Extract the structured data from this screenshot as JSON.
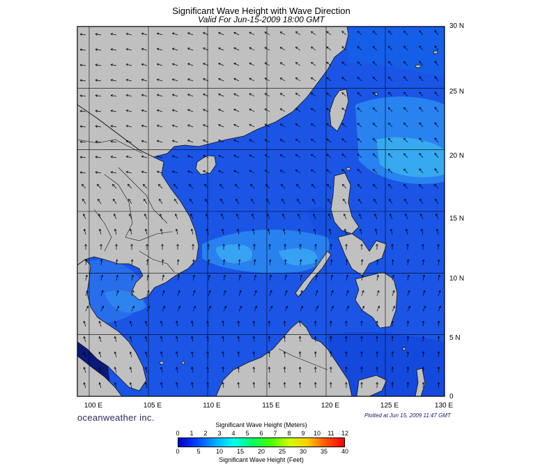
{
  "title": "Significant Wave Height with Wave Direction",
  "subtitle": "Valid For Jun-15-2009 18:00 GMT",
  "map": {
    "lon_range": [
      99,
      130
    ],
    "lat_range": [
      0,
      30
    ],
    "lat_labels": [
      "30 N",
      "25 N",
      "20 N",
      "15 N",
      "10 N",
      "5 N",
      "0"
    ],
    "lon_labels": [
      "100 E",
      "105 E",
      "110 E",
      "115 E",
      "120 E",
      "125 E",
      "130 E"
    ],
    "land_color": "#c0c0c0",
    "ocean_base_color": "#1a55e6",
    "high_wave_color": "#3ab0f0",
    "grid": true
  },
  "branding": {
    "brand": "oceanweather inc.",
    "plotted": "Plotted at Jun 15, 2009 11:47 GMT"
  },
  "colorbar": {
    "title_top": "Significant Wave Height (Meters)",
    "title_bottom": "Significant Wave Height (Feet)",
    "meters_ticks": [
      "0",
      "1",
      "2",
      "3",
      "4",
      "5",
      "6",
      "7",
      "8",
      "9",
      "10",
      "11",
      "12"
    ],
    "feet_ticks": [
      "0",
      "5",
      "10",
      "15",
      "20",
      "25",
      "30",
      "35",
      "40"
    ],
    "colors": [
      "#0000cc",
      "#0044ff",
      "#00aaff",
      "#00ffee",
      "#00ff66",
      "#44ff00",
      "#ccff00",
      "#ffcc00",
      "#ff5500",
      "#ff0000"
    ]
  }
}
